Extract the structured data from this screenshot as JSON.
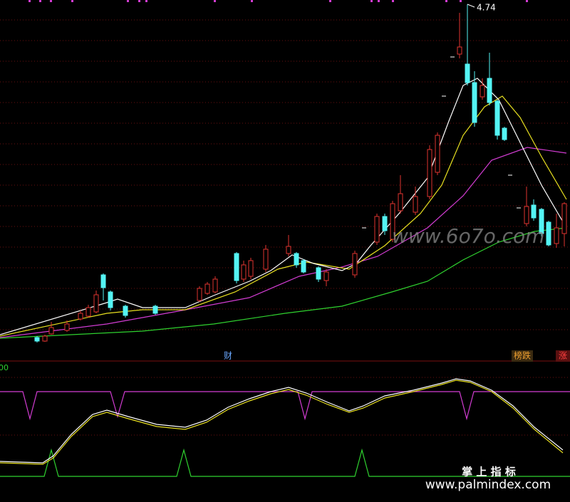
{
  "chart": {
    "high_label": "4.74",
    "markers": {
      "finance": "财",
      "rank": "榜跌",
      "rise": "涨"
    },
    "indicator_label": "00"
  },
  "watermarks": {
    "site": "www.6o7o.com",
    "brand": "掌 上 指 标",
    "brand_url": "www.palmindex.com"
  }
}
